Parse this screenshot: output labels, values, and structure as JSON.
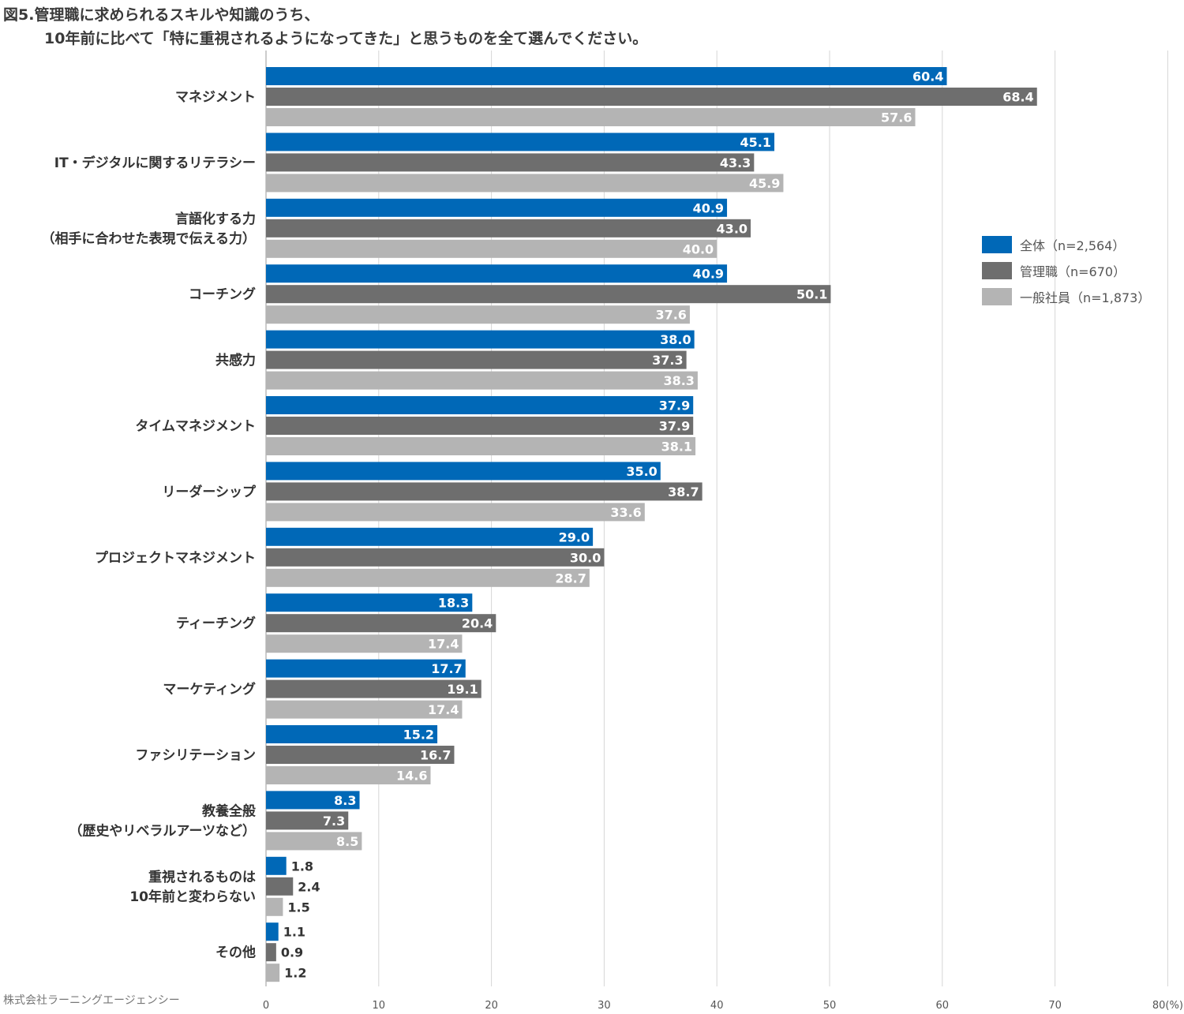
{
  "chart_data": {
    "type": "bar",
    "orientation": "horizontal",
    "title": [
      "図5.管理職に求められるスキルや知識のうち、",
      "10年前に比べて「特に重視されるようになってきた」と思うものを全て選んでください。"
    ],
    "categories": [
      [
        "マネジメント"
      ],
      [
        "IT・デジタルに関するリテラシー"
      ],
      [
        "言語化する力",
        "（相手に合わせた表現で伝える力）"
      ],
      [
        "コーチング"
      ],
      [
        "共感力"
      ],
      [
        "タイムマネジメント"
      ],
      [
        "リーダーシップ"
      ],
      [
        "プロジェクトマネジメント"
      ],
      [
        "ティーチング"
      ],
      [
        "マーケティング"
      ],
      [
        "ファシリテーション"
      ],
      [
        "教養全般",
        "（歴史やリベラルアーツなど）"
      ],
      [
        "重視されるものは",
        "10年前と変わらない"
      ],
      [
        "その他"
      ]
    ],
    "series": [
      {
        "name": "全体（n=2,564）",
        "color": "#0068b7",
        "values": [
          60.4,
          45.1,
          40.9,
          40.9,
          38.0,
          37.9,
          35.0,
          29.0,
          18.3,
          17.7,
          15.2,
          8.3,
          1.8,
          1.1
        ],
        "labels": [
          "60.4",
          "45.1",
          "40.9",
          "40.9",
          "38.0",
          "37.9",
          "35.0",
          "29.0",
          "18.3",
          "17.7",
          "15.2",
          "8.3",
          "1.8",
          "1.1"
        ]
      },
      {
        "name": "管理職（n=670）",
        "color": "#6e6e6e",
        "values": [
          68.4,
          43.3,
          43.0,
          50.1,
          37.3,
          37.9,
          38.7,
          30.0,
          20.4,
          19.1,
          16.7,
          7.3,
          2.4,
          0.9
        ],
        "labels": [
          "68.4",
          "43.3",
          "43.0",
          "50.1",
          "37.3",
          "37.9",
          "38.7",
          "30.0",
          "20.4",
          "19.1",
          "16.7",
          "7.3",
          "2.4",
          "0.9"
        ]
      },
      {
        "name": "一般社員（n=1,873）",
        "color": "#b4b4b4",
        "values": [
          57.6,
          45.9,
          40.0,
          37.6,
          38.3,
          38.1,
          33.6,
          28.7,
          17.4,
          17.4,
          14.6,
          8.5,
          1.5,
          1.2
        ],
        "labels": [
          "57.6",
          "45.9",
          "40.0",
          "37.6",
          "38.3",
          "38.1",
          "33.6",
          "28.7",
          "17.4",
          "17.4",
          "14.6",
          "8.5",
          "1.5",
          "1.2"
        ]
      }
    ],
    "xlim": [
      0,
      80
    ],
    "xticks": [
      "0",
      "10",
      "20",
      "30",
      "40",
      "50",
      "60",
      "70",
      "80(%)"
    ],
    "xlabel": "",
    "ylabel": "",
    "grid": true,
    "legend_position": "right"
  },
  "credit": "株式会社ラーニングエージェンシー"
}
